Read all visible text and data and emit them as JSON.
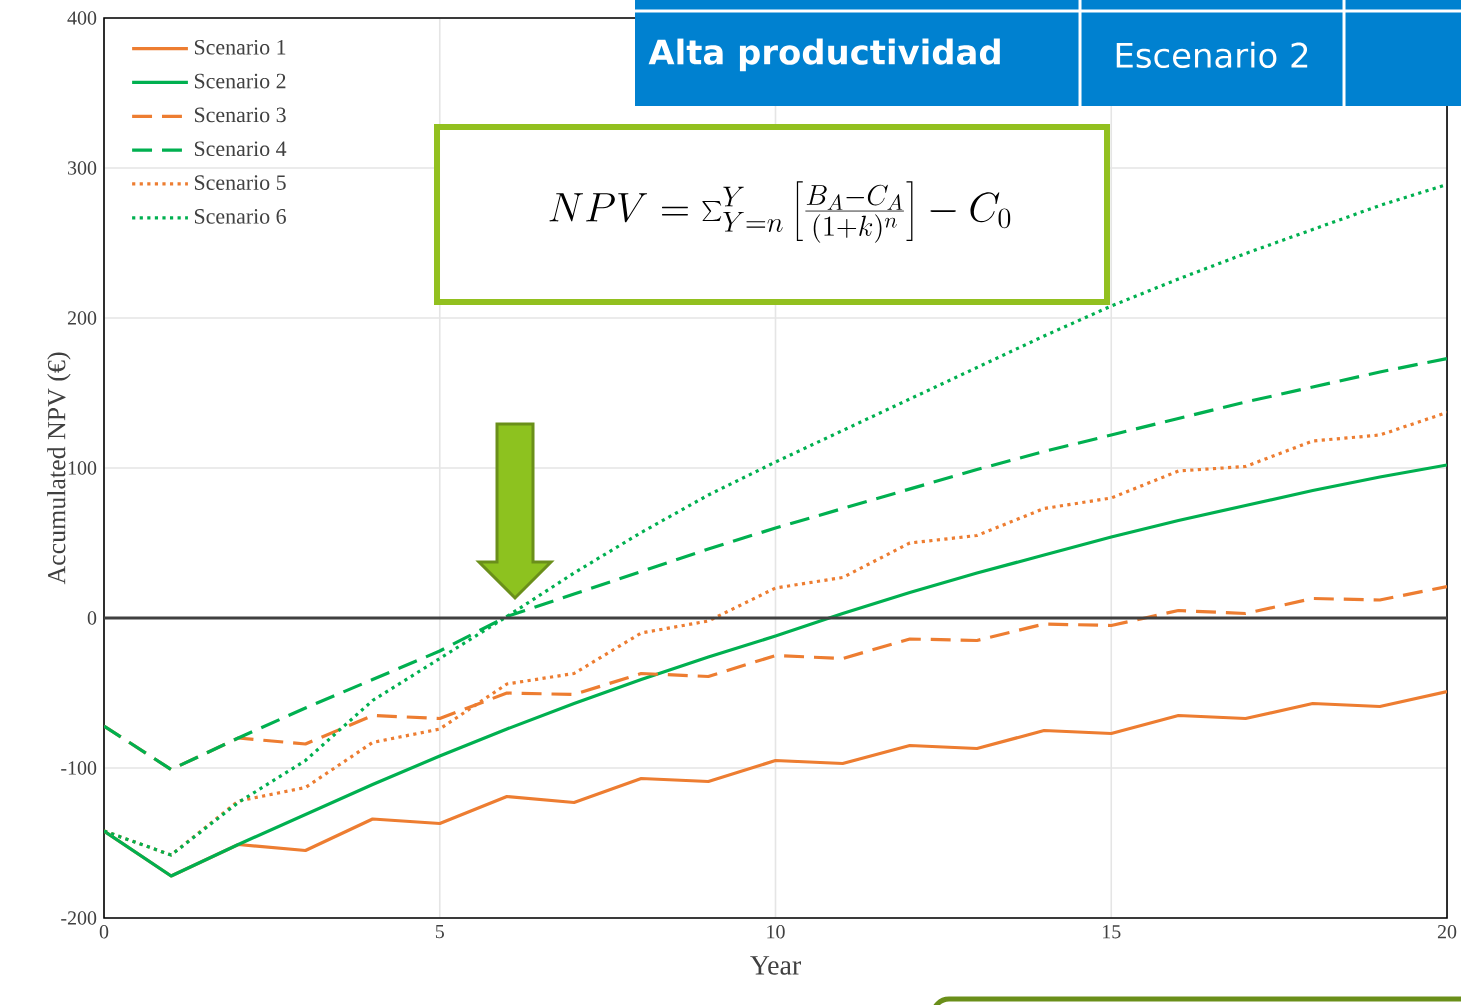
{
  "chart_data": {
    "type": "line",
    "xlabel": "Year",
    "ylabel": "Accumulated NPV (€)",
    "x": [
      0,
      1,
      2,
      3,
      4,
      5,
      6,
      7,
      8,
      9,
      10,
      11,
      12,
      13,
      14,
      15,
      16,
      17,
      18,
      19,
      20
    ],
    "xlim": [
      0,
      20
    ],
    "xticks": [
      0,
      5,
      10,
      15,
      20
    ],
    "ylim": [
      -200,
      400
    ],
    "yticks": [
      -200,
      -100,
      0,
      100,
      200,
      300,
      400
    ],
    "grid": true,
    "legend": "top left",
    "marker": "none",
    "ref_lines": [
      {
        "axis": "y",
        "value": 0,
        "color": "#404040"
      }
    ],
    "annotations": [
      "NPV = \\sum^{Y}_{Y=n}\\left[\\frac{B_A-C_A}{(1+k)^n}\\right]-C_0",
      "Alta productividad",
      "Escenario 2"
    ],
    "series": [
      {
        "name": "Scenario 1",
        "color": "#ed7d31",
        "line_style": "solid",
        "values": [
          -142,
          -172,
          -151,
          -155,
          -134,
          -137,
          -119,
          -123,
          -107,
          -109,
          -95,
          -97,
          -85,
          -87,
          -75,
          -77,
          -65,
          -67,
          -57,
          -59,
          -49
        ]
      },
      {
        "name": "Scenario 2",
        "color": "#00b050",
        "line_style": "solid",
        "values": [
          -142,
          -172,
          -151,
          -131,
          -111,
          -92,
          -74,
          -57,
          -41,
          -26,
          -12,
          3,
          17,
          30,
          42,
          54,
          65,
          75,
          85,
          94,
          102
        ]
      },
      {
        "name": "Scenario 3",
        "color": "#ed7d31",
        "line_style": "dashed",
        "values": [
          -72,
          -101,
          -80,
          -84,
          -65,
          -67,
          -50,
          -51,
          -37,
          -39,
          -25,
          -27,
          -14,
          -15,
          -4,
          -5,
          5,
          3,
          13,
          12,
          21
        ]
      },
      {
        "name": "Scenario 4",
        "color": "#00b050",
        "line_style": "dashed",
        "values": [
          -72,
          -101,
          -80,
          -60,
          -41,
          -22,
          1,
          16,
          31,
          46,
          60,
          73,
          86,
          99,
          111,
          122,
          133,
          144,
          154,
          164,
          173
        ]
      },
      {
        "name": "Scenario 5",
        "color": "#ed7d31",
        "line_style": "dotted",
        "values": [
          -142,
          -158,
          -122,
          -113,
          -83,
          -74,
          -44,
          -37,
          -10,
          -2,
          20,
          27,
          50,
          55,
          73,
          80,
          98,
          101,
          118,
          122,
          137
        ]
      },
      {
        "name": "Scenario 6",
        "color": "#00b050",
        "line_style": "dotted",
        "values": [
          -142,
          -158,
          -123,
          -95,
          -55,
          -27,
          1,
          30,
          57,
          82,
          104,
          125,
          146,
          167,
          188,
          208,
          226,
          243,
          259,
          275,
          289
        ]
      }
    ]
  }
}
